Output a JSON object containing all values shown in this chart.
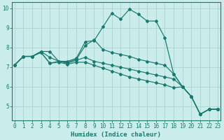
{
  "xlabel": "Humidex (Indice chaleur)",
  "xlim": [
    -0.3,
    23.3
  ],
  "ylim": [
    4.3,
    10.3
  ],
  "xticks": [
    0,
    1,
    2,
    3,
    4,
    5,
    6,
    7,
    8,
    9,
    10,
    11,
    12,
    13,
    14,
    15,
    16,
    17,
    18,
    19,
    20,
    21,
    22,
    23
  ],
  "yticks": [
    5,
    6,
    7,
    8,
    9,
    10
  ],
  "bg_color": "#caecea",
  "grid_color": "#aad4d0",
  "line_color": "#1a7a6e",
  "lines": [
    {
      "x": [
        0,
        1,
        2,
        3,
        4,
        5,
        6,
        7,
        8,
        9,
        10,
        11,
        12,
        13,
        14,
        15,
        16,
        17,
        18,
        19,
        20,
        21,
        22,
        23
      ],
      "y": [
        7.1,
        7.55,
        7.55,
        7.8,
        7.8,
        7.3,
        7.3,
        7.45,
        8.3,
        8.35,
        9.05,
        9.75,
        9.45,
        9.95,
        9.7,
        9.35,
        9.35,
        8.5,
        6.65,
        6.0,
        5.5,
        4.6,
        4.85,
        4.85
      ]
    },
    {
      "x": [
        0,
        1,
        2,
        3,
        4,
        5,
        6,
        7,
        8,
        9,
        10,
        11,
        12,
        13,
        14,
        15,
        16,
        17,
        18,
        19,
        20,
        21,
        22,
        23
      ],
      "y": [
        7.1,
        7.55,
        7.55,
        7.8,
        7.5,
        7.3,
        7.25,
        7.4,
        8.1,
        8.4,
        7.9,
        7.75,
        7.65,
        7.55,
        7.4,
        7.3,
        7.2,
        7.1,
        6.65,
        6.0,
        5.5,
        4.6,
        4.85,
        4.85
      ]
    },
    {
      "x": [
        0,
        1,
        2,
        3,
        4,
        5,
        6,
        7,
        8,
        9,
        10,
        11,
        12,
        13,
        14,
        15,
        16,
        17,
        18,
        19,
        20,
        21,
        22,
        23
      ],
      "y": [
        7.1,
        7.55,
        7.55,
        7.75,
        7.2,
        7.3,
        7.2,
        7.35,
        7.5,
        7.3,
        7.2,
        7.1,
        7.0,
        6.9,
        6.8,
        6.7,
        6.6,
        6.5,
        6.4,
        6.0,
        5.5,
        4.6,
        4.85,
        4.85
      ]
    },
    {
      "x": [
        0,
        1,
        2,
        3,
        4,
        5,
        6,
        7,
        8,
        9,
        10,
        11,
        12,
        13,
        14,
        15,
        16,
        17,
        18,
        19,
        20,
        21,
        22,
        23
      ],
      "y": [
        7.1,
        7.55,
        7.55,
        7.75,
        7.2,
        7.25,
        7.15,
        7.25,
        7.25,
        7.1,
        6.95,
        6.8,
        6.65,
        6.5,
        6.4,
        6.3,
        6.2,
        6.1,
        5.95,
        6.0,
        5.5,
        4.6,
        4.85,
        4.85
      ]
    }
  ]
}
